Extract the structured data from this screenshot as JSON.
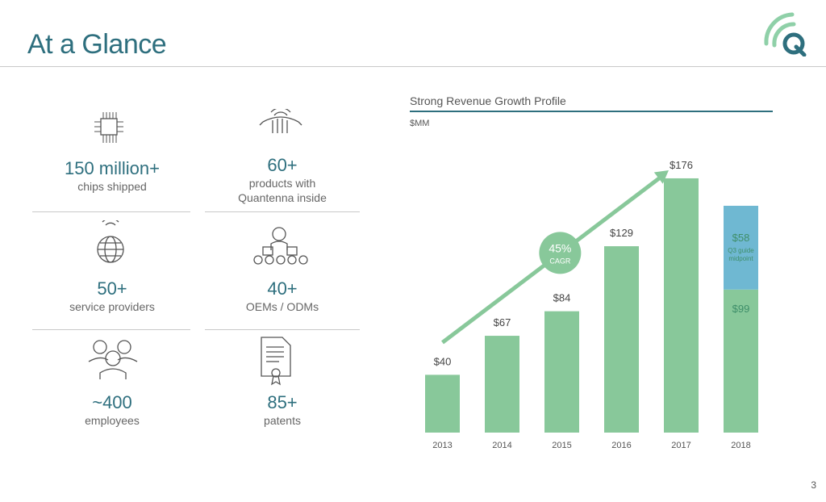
{
  "header": {
    "title": "At a Glance"
  },
  "stats": [
    {
      "value": "150 million+",
      "label": "chips shipped",
      "icon": "chip-icon"
    },
    {
      "value": "60+",
      "label": "products with Quantenna inside",
      "icon": "router-icon"
    },
    {
      "value": "50+",
      "label": "service providers",
      "icon": "globe-icon"
    },
    {
      "value": "40+",
      "label": "OEMs / ODMs",
      "icon": "conveyor-icon"
    },
    {
      "value": "~400",
      "label": "employees",
      "icon": "people-icon"
    },
    {
      "value": "85+",
      "label": "patents",
      "icon": "certificate-icon"
    }
  ],
  "chart_data": {
    "type": "bar",
    "title": "Strong Revenue Growth Profile",
    "ylabel": "$MM",
    "categories": [
      "2013",
      "2014",
      "2015",
      "2016",
      "2017",
      "2018"
    ],
    "series": [
      {
        "values": [
          40,
          67,
          84,
          129,
          176,
          99
        ],
        "color": "#88c89a"
      },
      {
        "values": [
          0,
          0,
          0,
          0,
          0,
          58
        ],
        "color": "#6fb8d2"
      }
    ],
    "data_labels": [
      "$40",
      "$67",
      "$84",
      "$129",
      "$176",
      "$99"
    ],
    "stacked_label": {
      "value": "$58",
      "note": "Q3 guide midpoint"
    },
    "annotation": {
      "value": "45%",
      "label": "CAGR"
    },
    "ylim": [
      0,
      190
    ]
  },
  "page_number": "3"
}
